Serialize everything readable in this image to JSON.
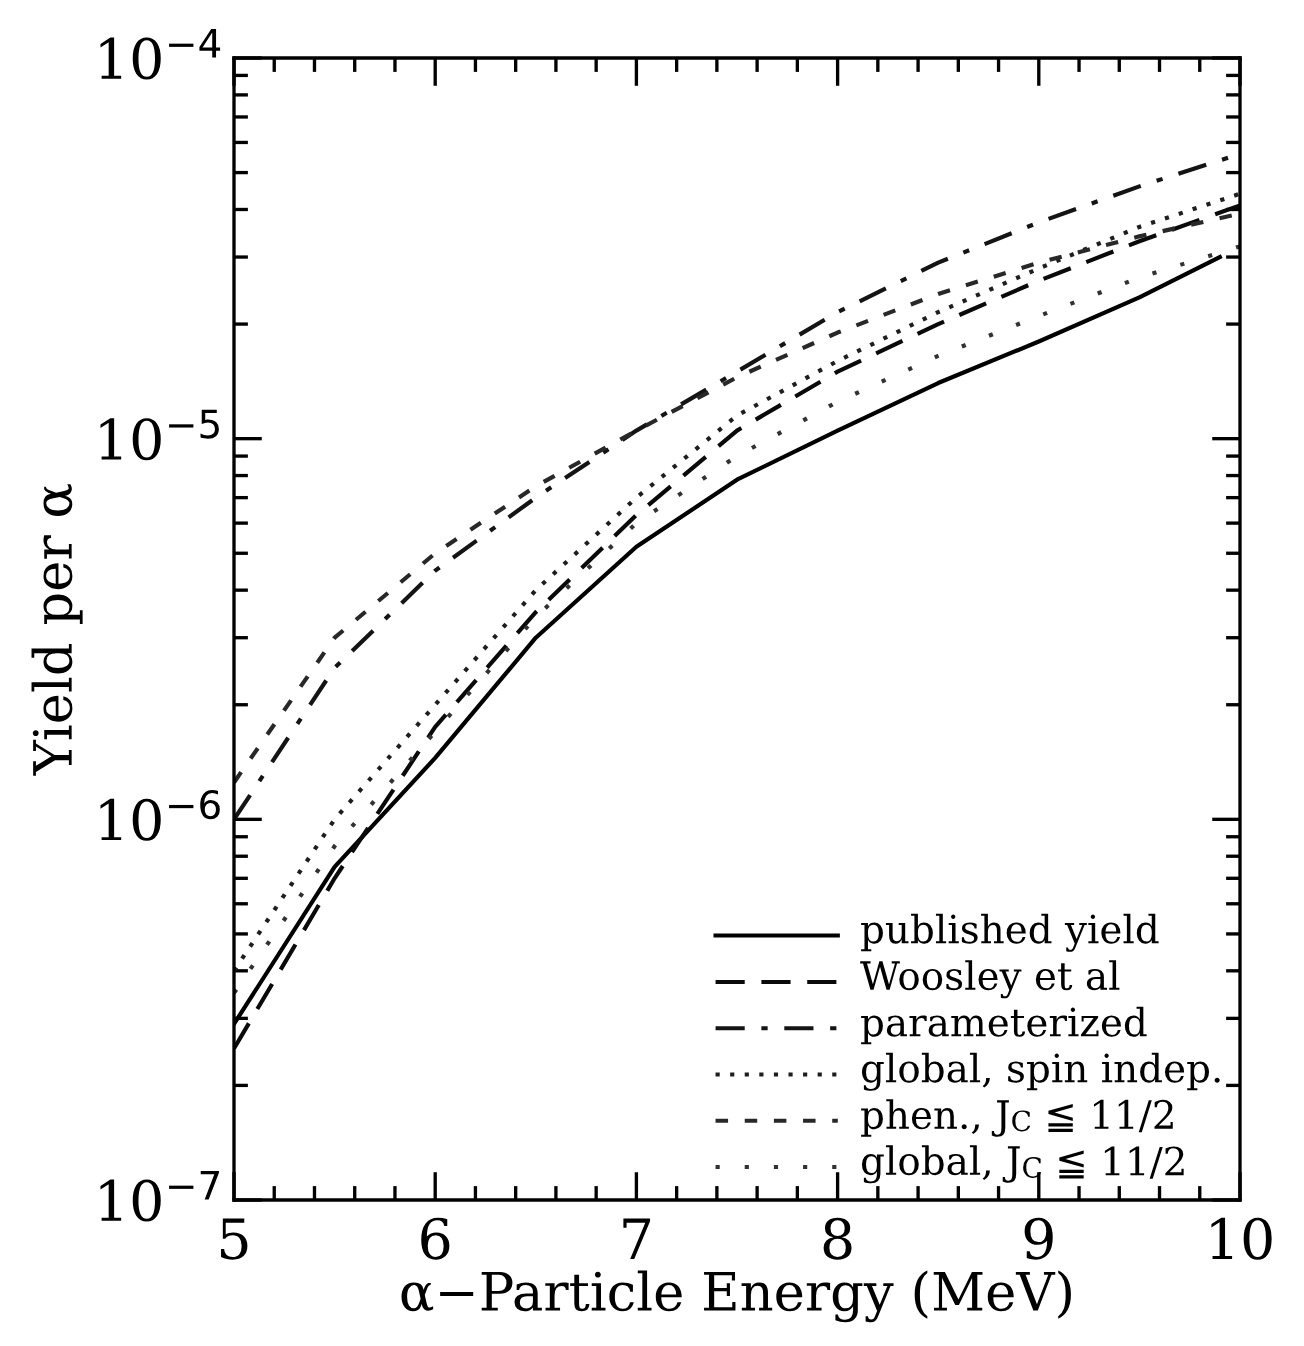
{
  "chart_data": {
    "type": "line",
    "xlabel": "α−Particle Energy (MeV)",
    "ylabel": "Yield per α",
    "x": [
      5,
      5.5,
      6,
      6.5,
      7,
      7.5,
      8,
      8.5,
      9,
      9.5,
      10
    ],
    "series": [
      {
        "name": "published yield",
        "color": "#000000",
        "line_style": "solid",
        "x": [
          5,
          5.5,
          6,
          6.5,
          7,
          7.5,
          8,
          8.5,
          9,
          9.5,
          9.9
        ],
        "values": [
          2.9e-07,
          7.5e-07,
          1.45e-06,
          3e-06,
          5.2e-06,
          7.8e-06,
          1.05e-05,
          1.4e-05,
          1.8e-05,
          2.35e-05,
          3e-05
        ]
      },
      {
        "name": "Woosley et al",
        "color": "#0a0a0a",
        "line_style": "dashed",
        "values": [
          2.5e-07,
          7e-07,
          1.75e-06,
          3.5e-06,
          6.3e-06,
          1.05e-05,
          1.5e-05,
          2e-05,
          2.6e-05,
          3.3e-05,
          4.1e-05
        ]
      },
      {
        "name": "parameterized",
        "color": "#141414",
        "line_style": "dashdot",
        "values": [
          1e-06,
          2.5e-06,
          4.5e-06,
          7e-06,
          1.05e-05,
          1.5e-05,
          2.15e-05,
          2.9e-05,
          3.7e-05,
          4.6e-05,
          5.6e-05
        ]
      },
      {
        "name": "global, spin indep.",
        "color": "#1e1e1e",
        "line_style": "dotted",
        "values": [
          4e-07,
          1e-06,
          2e-06,
          4e-06,
          7e-06,
          1.15e-05,
          1.6e-05,
          2.15e-05,
          2.8e-05,
          3.6e-05,
          4.4e-05
        ]
      },
      {
        "name": "phen., J$_{C}$ ≦ 11/2",
        "color": "#282828",
        "line_style": "short dashed",
        "values": [
          1.25e-06,
          3e-06,
          5e-06,
          7.5e-06,
          1.05e-05,
          1.45e-05,
          1.9e-05,
          2.4e-05,
          2.9e-05,
          3.4e-05,
          3.9e-05
        ]
      },
      {
        "name": "global, J$_{C}$ ≦ 11/2",
        "color": "#323232",
        "line_style": "sparse dotted",
        "values": [
          3.5e-07,
          8.5e-07,
          1.7e-06,
          3.4e-06,
          6e-06,
          9e-06,
          1.25e-05,
          1.65e-05,
          2.1e-05,
          2.65e-05,
          3.2e-05
        ]
      }
    ],
    "log": "y",
    "xlim": [
      5,
      10
    ],
    "xticks": [
      5,
      6,
      7,
      8,
      9,
      10
    ],
    "ylim": [
      1e-07,
      0.0001
    ],
    "yticks": [
      {
        "value": 1e-07,
        "label": "10$^{−7}$"
      },
      {
        "value": 1e-06,
        "label": "10$^{−6}$"
      },
      {
        "value": 1e-05,
        "label": "10$^{−5}$"
      },
      {
        "value": 0.0001,
        "label": "10$^{−4}$"
      }
    ],
    "grid": false,
    "legend": "bottom right"
  }
}
